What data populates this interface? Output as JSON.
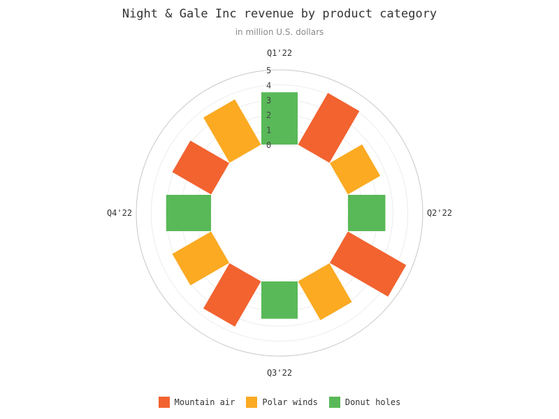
{
  "chart_data": {
    "type": "bar",
    "subtype": "polar-column",
    "title": "Night & Gale Inc revenue by product category",
    "subtitle": "in million U.S. dollars",
    "categories": [
      "Q1'22",
      "Q2'22",
      "Q3'22",
      "Q4'22"
    ],
    "y_ticks": [
      "0",
      "1",
      "2",
      "3",
      "4",
      "5"
    ],
    "ylim": [
      0,
      5
    ],
    "series": [
      {
        "name": "Mountain air",
        "color": "#f26330",
        "values": [
          4,
          4.5,
          3.5,
          3
        ]
      },
      {
        "name": "Polar winds",
        "color": "#fbaa22",
        "values": [
          2.5,
          3,
          3,
          3.5
        ]
      },
      {
        "name": "Donut holes",
        "color": "#59b958",
        "values": [
          3.5,
          2.5,
          2.5,
          3
        ]
      }
    ],
    "legend_position": "bottom",
    "grid": true
  }
}
